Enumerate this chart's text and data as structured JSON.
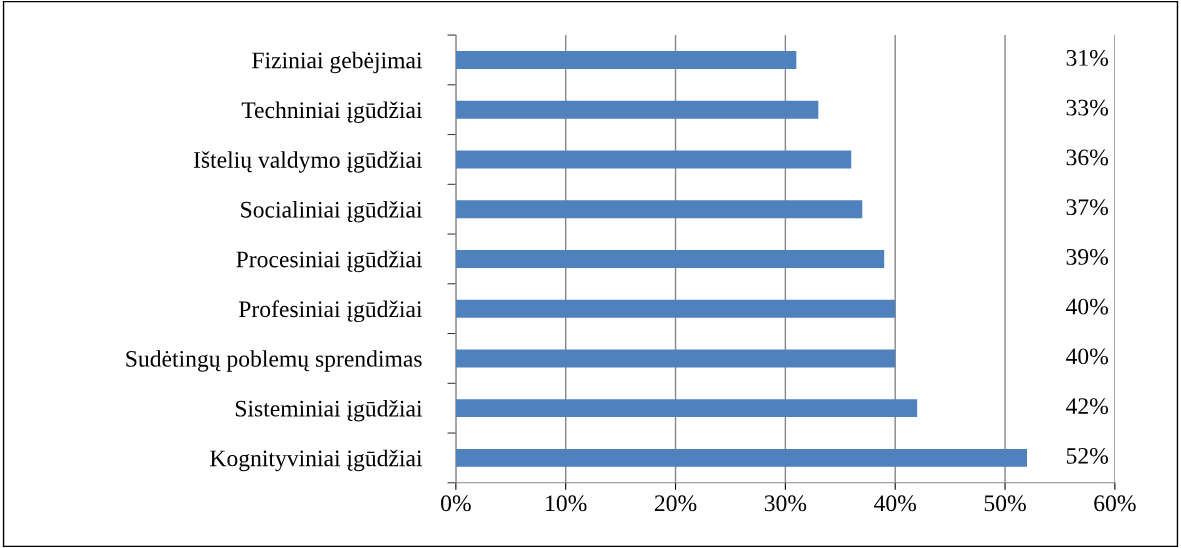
{
  "chart_data": {
    "type": "bar",
    "orientation": "horizontal",
    "categories": [
      "Fiziniai gebėjimai",
      "Techniniai įgūdžiai",
      "Ištelių valdymo įgūdžiai",
      "Socialiniai įgūdžiai",
      "Procesiniai įgūdžiai",
      "Profesiniai įgūdžiai",
      "Sudėtingų poblemų sprendimas",
      "Sisteminiai įgūdžiai",
      "Kognityviniai įgūdžiai"
    ],
    "values": [
      31,
      33,
      36,
      37,
      39,
      40,
      40,
      42,
      52
    ],
    "value_labels": [
      "31%",
      "33%",
      "36%",
      "37%",
      "39%",
      "40%",
      "40%",
      "42%",
      "52%"
    ],
    "color": "#4f81bd",
    "xlim": [
      0,
      60
    ],
    "xticks": [
      {
        "value": 0,
        "label": "0%"
      },
      {
        "value": 10,
        "label": "10%"
      },
      {
        "value": 20,
        "label": "20%"
      },
      {
        "value": 30,
        "label": "30%"
      },
      {
        "value": 40,
        "label": "40%"
      },
      {
        "value": 50,
        "label": "50%"
      },
      {
        "value": 60,
        "label": "60%"
      }
    ],
    "grid": "x",
    "legend": false
  }
}
